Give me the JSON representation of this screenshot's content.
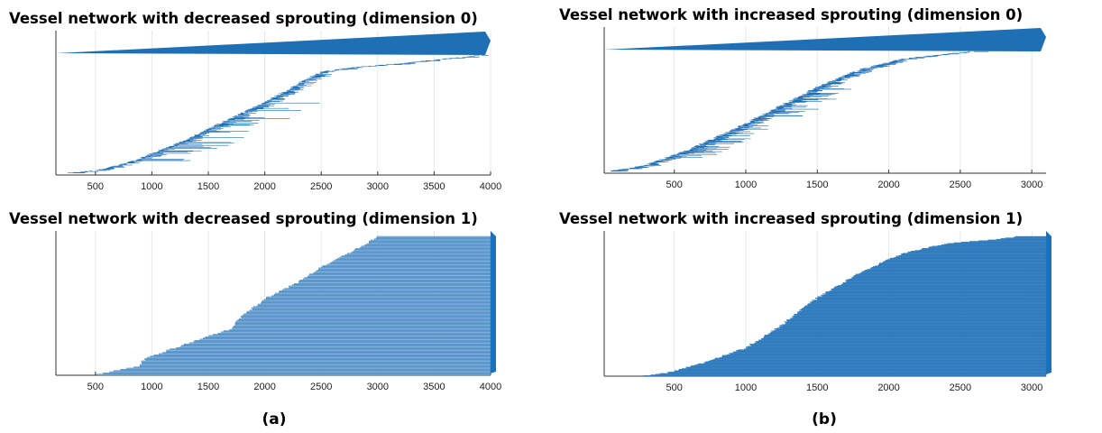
{
  "chart_data": [
    {
      "id": "a0",
      "type": "barcode",
      "title": "Vessel network with decreased sprouting (dimension 0)",
      "xlim": [
        150,
        4000
      ],
      "xticks": [
        500,
        1000,
        1500,
        2000,
        2500,
        3000,
        3500,
        4000
      ],
      "grid": true,
      "color": "#1f6fb5",
      "bar_count": 240,
      "infinite_bar_births": [
        150
      ],
      "birth_curve": [
        [
          250,
          0.0
        ],
        [
          500,
          0.02
        ],
        [
          800,
          0.09
        ],
        [
          1200,
          0.24
        ],
        [
          1600,
          0.42
        ],
        [
          2000,
          0.6
        ],
        [
          2300,
          0.76
        ],
        [
          2500,
          0.86
        ],
        [
          2800,
          0.9
        ],
        [
          3200,
          0.93
        ],
        [
          3600,
          0.97
        ],
        [
          3900,
          1.0
        ]
      ],
      "extra_length_range": [
        20,
        150
      ],
      "spike_length_range": [
        250,
        550
      ],
      "spike_start": 0.1,
      "spike_end": 0.6
    },
    {
      "id": "b0",
      "type": "barcode",
      "title": "Vessel network with increased sprouting (dimension 0)",
      "xlim": [
        10,
        3100
      ],
      "xticks": [
        500,
        1000,
        1500,
        2000,
        2500,
        3000
      ],
      "grid": true,
      "color": "#1f6fb5",
      "bar_count": 300,
      "infinite_bar_births": [
        10
      ],
      "birth_curve": [
        [
          50,
          0.0
        ],
        [
          300,
          0.05
        ],
        [
          600,
          0.18
        ],
        [
          900,
          0.34
        ],
        [
          1200,
          0.52
        ],
        [
          1500,
          0.7
        ],
        [
          1800,
          0.85
        ],
        [
          2100,
          0.94
        ],
        [
          2400,
          0.98
        ],
        [
          2600,
          1.0
        ]
      ],
      "extra_length_range": [
        20,
        120
      ],
      "spike_length_range": [
        150,
        300
      ],
      "spike_start": 0.1,
      "spike_end": 0.7
    },
    {
      "id": "a1",
      "type": "barcode",
      "title": "Vessel network with decreased sprouting (dimension 1)",
      "xlim": [
        150,
        4000
      ],
      "xticks": [
        500,
        1000,
        1500,
        2000,
        2500,
        3000,
        3500,
        4000
      ],
      "grid": true,
      "color": "#8ab6dd",
      "edge_color": "#1f6fb5",
      "bar_count": 115,
      "death": 4000,
      "birth_curve": [
        [
          500,
          0.0
        ],
        [
          880,
          0.06
        ],
        [
          950,
          0.12
        ],
        [
          1300,
          0.22
        ],
        [
          1700,
          0.33
        ],
        [
          1800,
          0.42
        ],
        [
          2000,
          0.55
        ],
        [
          2300,
          0.67
        ],
        [
          2500,
          0.78
        ],
        [
          2750,
          0.88
        ],
        [
          2900,
          0.95
        ],
        [
          3000,
          1.0
        ]
      ]
    },
    {
      "id": "b1",
      "type": "barcode",
      "title": "Vessel network with increased sprouting (dimension 1)",
      "xlim": [
        10,
        3100
      ],
      "xticks": [
        500,
        1000,
        1500,
        2000,
        2500,
        3000
      ],
      "grid": true,
      "color": "#4a8fcb",
      "edge_color": "#1f6fb5",
      "bar_count": 200,
      "death": 3100,
      "birth_curve": [
        [
          280,
          0.0
        ],
        [
          450,
          0.02
        ],
        [
          700,
          0.09
        ],
        [
          1000,
          0.2
        ],
        [
          1250,
          0.36
        ],
        [
          1500,
          0.56
        ],
        [
          1800,
          0.74
        ],
        [
          2100,
          0.88
        ],
        [
          2400,
          0.95
        ],
        [
          2750,
          0.98
        ],
        [
          2900,
          1.0
        ]
      ]
    }
  ],
  "captions": [
    "(a)",
    "(b)"
  ]
}
